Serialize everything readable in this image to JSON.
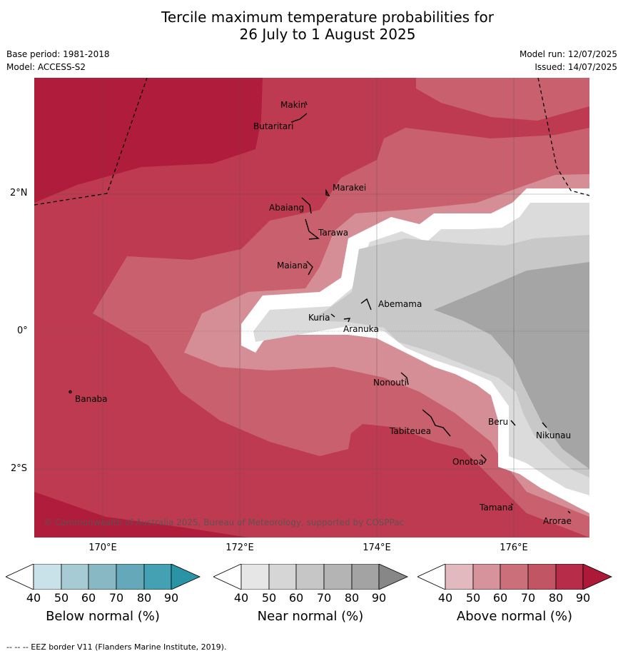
{
  "title": {
    "line1": "Tercile maximum temperature probabilities for",
    "line2": "26 July to 1 August 2025"
  },
  "meta": {
    "base_period": "Base period: 1981-2018",
    "model": "Model: ACCESS-S2",
    "model_run": "Model run: 12/07/2025",
    "issued": "Issued: 14/07/2025"
  },
  "axes": {
    "lat_labels": [
      "2°N",
      "0°",
      "2°S"
    ],
    "lon_labels": [
      "170°E",
      "172°E",
      "174°E",
      "176°E"
    ]
  },
  "map": {
    "places": [
      "Makin",
      "Butaritari",
      "Marakei",
      "Abaiang",
      "Tarawa",
      "Maiana",
      "Abemama",
      "Kuria",
      "Aranuka",
      "Nonouti",
      "Banaba",
      "Tabiteuea",
      "Beru",
      "Nikunau",
      "Onotoa",
      "Tamana",
      "Arorae"
    ],
    "copyright": "© Commonwealth of Australia 2025, Bureau of Meteorology, supported by COSPPac",
    "colors": {
      "above_90": "#b01d3c",
      "above_80": "#bd3a50",
      "above_70": "#c9606e",
      "above_60": "#d68e96",
      "near_50": "#dbdbdb",
      "near_60": "#c8c8c8",
      "near_70": "#a5a5a5"
    }
  },
  "colorbars": {
    "below": {
      "title": "Below normal (%)",
      "ticks": [
        "40",
        "50",
        "60",
        "70",
        "80",
        "90"
      ],
      "colors": [
        "#ffffff",
        "#c9e2ea",
        "#a6cbd4",
        "#88b8c4",
        "#64a8b9",
        "#44a0b3",
        "#2b93a6"
      ]
    },
    "near": {
      "title": "Near normal (%)",
      "ticks": [
        "40",
        "50",
        "60",
        "70",
        "80",
        "90"
      ],
      "colors": [
        "#ffffff",
        "#e6e6e6",
        "#d6d6d6",
        "#c6c6c6",
        "#b4b4b4",
        "#a3a3a3",
        "#878787"
      ]
    },
    "above": {
      "title": "Above normal (%)",
      "ticks": [
        "40",
        "50",
        "60",
        "70",
        "80",
        "90"
      ],
      "colors": [
        "#ffffff",
        "#e3b9c0",
        "#d6939c",
        "#cb6f7b",
        "#c25563",
        "#b72c48",
        "#ad1a39"
      ]
    }
  },
  "footnote": "--  --  -- EEZ border V11 (Flanders Marine Institute, 2019)."
}
